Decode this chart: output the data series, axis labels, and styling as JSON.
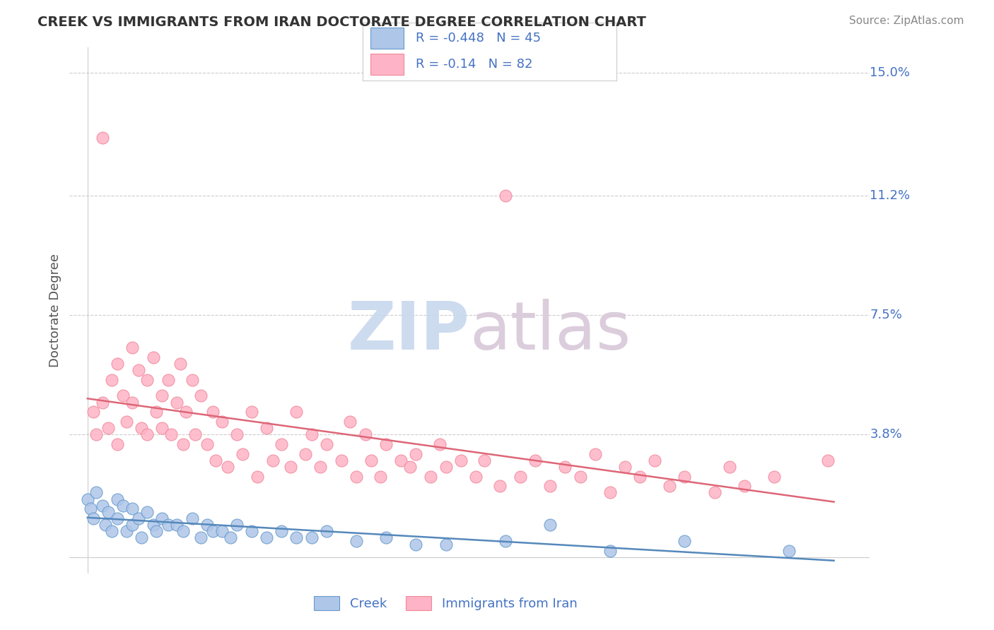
{
  "title": "CREEK VS IMMIGRANTS FROM IRAN DOCTORATE DEGREE CORRELATION CHART",
  "source": "Source: ZipAtlas.com",
  "ylabel": "Doctorate Degree",
  "bg_color": "#ffffff",
  "grid_color": "#cccccc",
  "creek_fill": "#aec6e8",
  "creek_edge": "#6699cc",
  "creek_line": "#5588bb",
  "iran_fill": "#ffb3c6",
  "iran_edge": "#ee8899",
  "iran_line": "#dd6677",
  "label_color": "#4472c4",
  "title_color": "#333333",
  "source_color": "#888888",
  "watermark_color": "#dce8f5",
  "creek_R": -0.448,
  "creek_N": 45,
  "iran_R": -0.14,
  "iran_N": 82,
  "ytick_vals": [
    0.038,
    0.075,
    0.112,
    0.15
  ],
  "ytick_labels": [
    "3.8%",
    "7.5%",
    "11.2%",
    "15.0%"
  ],
  "iran_x": [
    0.002,
    0.003,
    0.005,
    0.005,
    0.007,
    0.008,
    0.01,
    0.01,
    0.012,
    0.013,
    0.015,
    0.015,
    0.017,
    0.018,
    0.02,
    0.02,
    0.022,
    0.023,
    0.025,
    0.025,
    0.027,
    0.028,
    0.03,
    0.031,
    0.032,
    0.033,
    0.035,
    0.036,
    0.038,
    0.04,
    0.042,
    0.043,
    0.045,
    0.047,
    0.05,
    0.052,
    0.055,
    0.057,
    0.06,
    0.062,
    0.065,
    0.068,
    0.07,
    0.073,
    0.075,
    0.078,
    0.08,
    0.085,
    0.088,
    0.09,
    0.093,
    0.095,
    0.098,
    0.1,
    0.105,
    0.108,
    0.11,
    0.115,
    0.118,
    0.12,
    0.125,
    0.13,
    0.133,
    0.138,
    0.14,
    0.145,
    0.15,
    0.155,
    0.16,
    0.165,
    0.17,
    0.175,
    0.18,
    0.185,
    0.19,
    0.195,
    0.2,
    0.21,
    0.215,
    0.22,
    0.23,
    0.248
  ],
  "iran_y": [
    0.045,
    0.038,
    0.13,
    0.048,
    0.04,
    0.055,
    0.06,
    0.035,
    0.05,
    0.042,
    0.065,
    0.048,
    0.058,
    0.04,
    0.055,
    0.038,
    0.062,
    0.045,
    0.05,
    0.04,
    0.055,
    0.038,
    0.048,
    0.06,
    0.035,
    0.045,
    0.055,
    0.038,
    0.05,
    0.035,
    0.045,
    0.03,
    0.042,
    0.028,
    0.038,
    0.032,
    0.045,
    0.025,
    0.04,
    0.03,
    0.035,
    0.028,
    0.045,
    0.032,
    0.038,
    0.028,
    0.035,
    0.03,
    0.042,
    0.025,
    0.038,
    0.03,
    0.025,
    0.035,
    0.03,
    0.028,
    0.032,
    0.025,
    0.035,
    0.028,
    0.03,
    0.025,
    0.03,
    0.022,
    0.112,
    0.025,
    0.03,
    0.022,
    0.028,
    0.025,
    0.032,
    0.02,
    0.028,
    0.025,
    0.03,
    0.022,
    0.025,
    0.02,
    0.028,
    0.022,
    0.025,
    0.03
  ],
  "creek_x": [
    0.0,
    0.001,
    0.002,
    0.003,
    0.005,
    0.006,
    0.007,
    0.008,
    0.01,
    0.01,
    0.012,
    0.013,
    0.015,
    0.015,
    0.017,
    0.018,
    0.02,
    0.022,
    0.023,
    0.025,
    0.027,
    0.03,
    0.032,
    0.035,
    0.038,
    0.04,
    0.042,
    0.045,
    0.048,
    0.05,
    0.055,
    0.06,
    0.065,
    0.07,
    0.075,
    0.08,
    0.09,
    0.1,
    0.11,
    0.12,
    0.14,
    0.155,
    0.175,
    0.2,
    0.235
  ],
  "creek_y": [
    0.018,
    0.015,
    0.012,
    0.02,
    0.016,
    0.01,
    0.014,
    0.008,
    0.018,
    0.012,
    0.016,
    0.008,
    0.015,
    0.01,
    0.012,
    0.006,
    0.014,
    0.01,
    0.008,
    0.012,
    0.01,
    0.01,
    0.008,
    0.012,
    0.006,
    0.01,
    0.008,
    0.008,
    0.006,
    0.01,
    0.008,
    0.006,
    0.008,
    0.006,
    0.006,
    0.008,
    0.005,
    0.006,
    0.004,
    0.004,
    0.005,
    0.01,
    0.002,
    0.005,
    0.002
  ]
}
